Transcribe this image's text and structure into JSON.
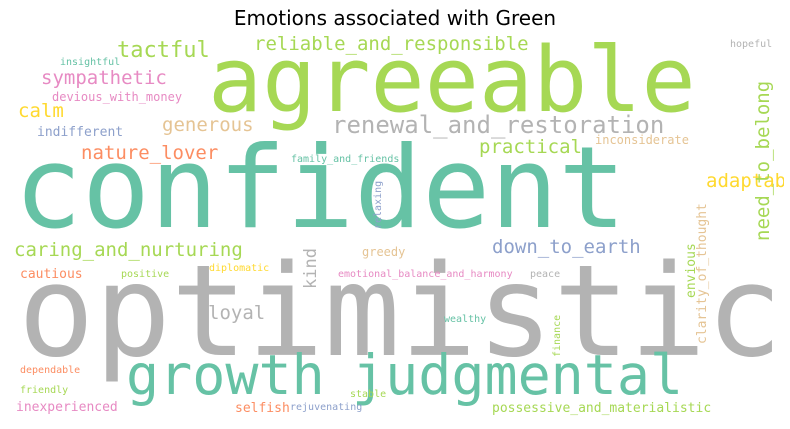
{
  "title": "Emotions associated with Green",
  "palette": {
    "teal": "#66c2a5",
    "orange": "#fc8d62",
    "blue": "#8da0cb",
    "pink": "#e78ac3",
    "green": "#a6d854",
    "yellow": "#ffd92f",
    "tan": "#e5c494",
    "gray": "#b3b3b3"
  },
  "words": [
    "optimistic",
    "confident",
    "agreeable",
    "growth",
    "judgmental",
    "renewal_and_restoration",
    "reliable_and_responsible",
    "tactful",
    "sympathetic",
    "calm",
    "generous",
    "nature_lover",
    "practical",
    "caring_and_nurturing",
    "down_to_earth",
    "loyal",
    "adaptable",
    "kind",
    "need_to_belong",
    "possessive_and_materialistic",
    "hopeful",
    "insightful",
    "devious_with_money",
    "indifferent",
    "inconsiderate",
    "family_and_friends",
    "relaxing",
    "greedy",
    "envious",
    "clarity_of_thought",
    "cautious",
    "positive",
    "diplomatic",
    "emotional_balance_and_harmony",
    "peace",
    "wealthy",
    "finance",
    "dependable",
    "friendly",
    "stable",
    "inexperienced",
    "selfish",
    "rejuvenating"
  ]
}
